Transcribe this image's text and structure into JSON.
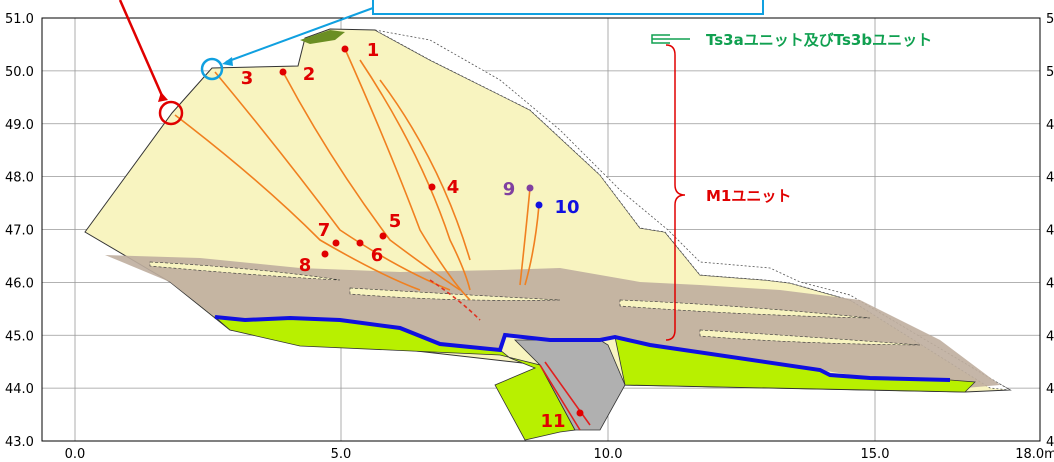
{
  "axes": {
    "y_labels": [
      "51.0",
      "50.0",
      "49.0",
      "48.0",
      "47.0",
      "46.0",
      "45.0",
      "44.0",
      "43.0"
    ],
    "x_labels": [
      "0.0",
      "5.0",
      "10.0",
      "15.0",
      "18.0m"
    ],
    "right_labels": [
      "5",
      "5",
      "4",
      "4",
      "4",
      "4",
      "4",
      "4",
      "4"
    ]
  },
  "legend": {
    "upper": "Ts3aユニット及びTs3bユニット",
    "lower": "M1ユニット"
  },
  "points": [
    {
      "label": "1"
    },
    {
      "label": "2"
    },
    {
      "label": "3"
    },
    {
      "label": "4"
    },
    {
      "label": "5"
    },
    {
      "label": "6"
    },
    {
      "label": "7"
    },
    {
      "label": "8"
    },
    {
      "label": "9"
    },
    {
      "label": "10"
    },
    {
      "label": "11"
    }
  ]
}
